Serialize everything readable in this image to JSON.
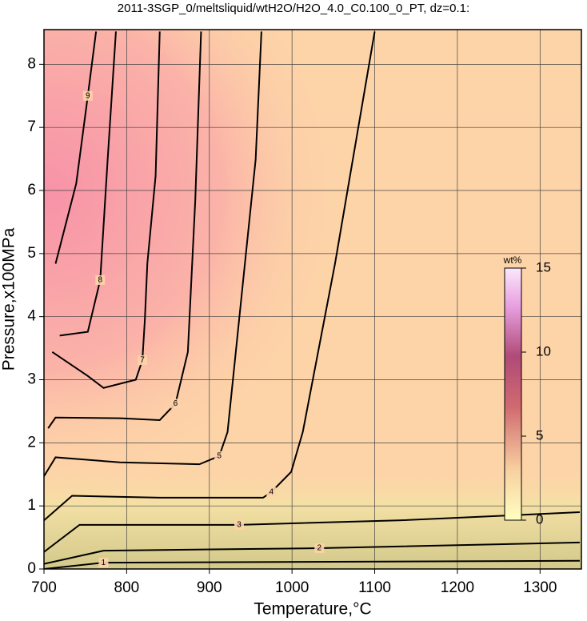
{
  "chart_data": {
    "type": "contour",
    "title": "2011-3SGP_0/meltsliquid/wtH2O/H2O_4.0_C0.100_0_PT, dz=0.1:",
    "x_label": "Temperature,°C",
    "y_label": "Pressure,x100MPa",
    "xlim": [
      700,
      1350
    ],
    "ylim": [
      0,
      8.55
    ],
    "xticks": [
      700,
      800,
      900,
      1000,
      1100,
      1200,
      1300
    ],
    "yticks": [
      0,
      1,
      2,
      3,
      4,
      5,
      6,
      7,
      8
    ],
    "grid": true,
    "contours": [
      {
        "level": 1,
        "x": [
          700,
          772,
          1348
        ],
        "y": [
          0,
          0.1,
          0.13
        ]
      },
      {
        "level": 2,
        "x": [
          700,
          772,
          1033,
          1348
        ],
        "y": [
          0.08,
          0.29,
          0.33,
          0.42
        ]
      },
      {
        "level": 3,
        "x": [
          700,
          743,
          936,
          1129,
          1348
        ],
        "y": [
          0.27,
          0.7,
          0.7,
          0.77,
          0.9
        ]
      },
      {
        "level": 4,
        "x": [
          700,
          734,
          840,
          965,
          975,
          999,
          1013,
          1052,
          1100
        ],
        "y": [
          0.77,
          1.16,
          1.13,
          1.13,
          1.22,
          1.54,
          2.17,
          4.84,
          8.52
        ]
      },
      {
        "level": 5,
        "x": [
          700,
          714,
          792,
          888,
          912,
          922,
          936,
          956,
          963
        ],
        "y": [
          1.47,
          1.77,
          1.69,
          1.66,
          1.79,
          2.17,
          3.95,
          6.49,
          8.52
        ]
      },
      {
        "level": 6,
        "x": [
          705,
          714,
          792,
          840,
          859,
          874,
          883,
          890
        ],
        "y": [
          2.23,
          2.4,
          2.39,
          2.36,
          2.62,
          3.44,
          5.85,
          8.52
        ]
      },
      {
        "level": 7,
        "x": [
          710,
          753,
          772,
          811,
          819,
          822,
          825,
          835,
          840
        ],
        "y": [
          3.44,
          3.06,
          2.87,
          3.0,
          3.31,
          3.95,
          4.84,
          6.23,
          8.52
        ]
      },
      {
        "level": 8,
        "x": [
          719,
          753,
          768,
          777,
          787
        ],
        "y": [
          3.7,
          3.76,
          4.58,
          6.49,
          8.52
        ]
      },
      {
        "level": 9,
        "x": [
          714,
          739,
          753,
          763
        ],
        "y": [
          4.84,
          6.11,
          7.5,
          8.52
        ]
      }
    ],
    "colorbar": {
      "title": "wt%",
      "lim": [
        0,
        15
      ],
      "ticks": [
        0,
        5,
        10,
        15
      ]
    }
  }
}
